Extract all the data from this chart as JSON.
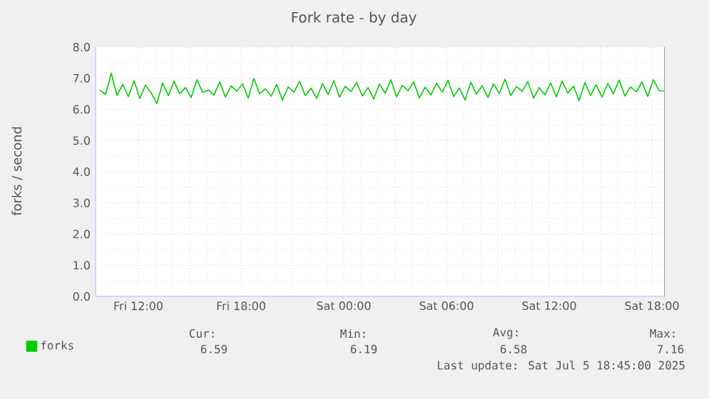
{
  "chart_data": {
    "type": "line",
    "title": "Fork rate - by day",
    "ylabel": "forks / second",
    "x": [
      "2025-07-04T09:45",
      "2025-07-04T10:05",
      "2025-07-04T10:25",
      "2025-07-04T10:45",
      "2025-07-04T11:05",
      "2025-07-04T11:25",
      "2025-07-04T11:45",
      "2025-07-04T12:05",
      "2025-07-04T12:25",
      "2025-07-04T12:45",
      "2025-07-04T13:05",
      "2025-07-04T13:25",
      "2025-07-04T13:45",
      "2025-07-04T14:05",
      "2025-07-04T14:25",
      "2025-07-04T14:45",
      "2025-07-04T15:05",
      "2025-07-04T15:25",
      "2025-07-04T15:45",
      "2025-07-04T16:05",
      "2025-07-04T16:25",
      "2025-07-04T16:45",
      "2025-07-04T17:05",
      "2025-07-04T17:25",
      "2025-07-04T17:45",
      "2025-07-04T18:05",
      "2025-07-04T18:25",
      "2025-07-04T18:45",
      "2025-07-04T19:05",
      "2025-07-04T19:25",
      "2025-07-04T19:45",
      "2025-07-04T20:05",
      "2025-07-04T20:25",
      "2025-07-04T20:45",
      "2025-07-04T21:05",
      "2025-07-04T21:25",
      "2025-07-04T21:45",
      "2025-07-04T22:05",
      "2025-07-04T22:25",
      "2025-07-04T22:45",
      "2025-07-04T23:05",
      "2025-07-04T23:25",
      "2025-07-04T23:45",
      "2025-07-05T00:05",
      "2025-07-05T00:25",
      "2025-07-05T00:45",
      "2025-07-05T01:05",
      "2025-07-05T01:25",
      "2025-07-05T01:45",
      "2025-07-05T02:05",
      "2025-07-05T02:25",
      "2025-07-05T02:45",
      "2025-07-05T03:05",
      "2025-07-05T03:25",
      "2025-07-05T03:45",
      "2025-07-05T04:05",
      "2025-07-05T04:25",
      "2025-07-05T04:45",
      "2025-07-05T05:05",
      "2025-07-05T05:25",
      "2025-07-05T05:45",
      "2025-07-05T06:05",
      "2025-07-05T06:25",
      "2025-07-05T06:45",
      "2025-07-05T07:05",
      "2025-07-05T07:25",
      "2025-07-05T07:45",
      "2025-07-05T08:05",
      "2025-07-05T08:25",
      "2025-07-05T08:45",
      "2025-07-05T09:05",
      "2025-07-05T09:25",
      "2025-07-05T09:45",
      "2025-07-05T10:05",
      "2025-07-05T10:25",
      "2025-07-05T10:45",
      "2025-07-05T11:05",
      "2025-07-05T11:25",
      "2025-07-05T11:45",
      "2025-07-05T12:05",
      "2025-07-05T12:25",
      "2025-07-05T12:45",
      "2025-07-05T13:05",
      "2025-07-05T13:25",
      "2025-07-05T13:45",
      "2025-07-05T14:05",
      "2025-07-05T14:25",
      "2025-07-05T14:45",
      "2025-07-05T15:05",
      "2025-07-05T15:25",
      "2025-07-05T15:45",
      "2025-07-05T16:05",
      "2025-07-05T16:25",
      "2025-07-05T16:45",
      "2025-07-05T17:05",
      "2025-07-05T17:25",
      "2025-07-05T17:45",
      "2025-07-05T18:05",
      "2025-07-05T18:25",
      "2025-07-05T18:45"
    ],
    "series": [
      {
        "name": "forks",
        "color": "#00cc00",
        "values": [
          6.62,
          6.48,
          7.16,
          6.45,
          6.8,
          6.41,
          6.92,
          6.35,
          6.78,
          6.52,
          6.19,
          6.85,
          6.44,
          6.9,
          6.5,
          6.7,
          6.38,
          6.95,
          6.55,
          6.62,
          6.46,
          6.88,
          6.4,
          6.75,
          6.58,
          6.82,
          6.36,
          6.99,
          6.5,
          6.66,
          6.42,
          6.8,
          6.3,
          6.72,
          6.55,
          6.9,
          6.44,
          6.68,
          6.35,
          6.83,
          6.48,
          6.92,
          6.39,
          6.74,
          6.57,
          6.86,
          6.43,
          6.7,
          6.33,
          6.81,
          6.52,
          6.95,
          6.4,
          6.77,
          6.6,
          6.88,
          6.37,
          6.71,
          6.46,
          6.84,
          6.55,
          6.93,
          6.41,
          6.69,
          6.3,
          6.87,
          6.49,
          6.76,
          6.38,
          6.82,
          6.51,
          6.97,
          6.44,
          6.73,
          6.58,
          6.89,
          6.36,
          6.7,
          6.47,
          6.85,
          6.4,
          6.91,
          6.52,
          6.74,
          6.28,
          6.86,
          6.45,
          6.79,
          6.39,
          6.83,
          6.5,
          6.94,
          6.43,
          6.72,
          6.56,
          6.88,
          6.42,
          6.95,
          6.6,
          6.59
        ]
      }
    ],
    "xlim": [
      "2025-07-04T09:30",
      "2025-07-05T18:45"
    ],
    "xticks": [
      {
        "value": "2025-07-04T12:00",
        "label": "Fri 12:00"
      },
      {
        "value": "2025-07-04T15:00",
        "label": null
      },
      {
        "value": "2025-07-04T18:00",
        "label": "Fri 18:00"
      },
      {
        "value": "2025-07-04T21:00",
        "label": null
      },
      {
        "value": "2025-07-05T00:00",
        "label": "Sat 00:00"
      },
      {
        "value": "2025-07-05T03:00",
        "label": null
      },
      {
        "value": "2025-07-05T06:00",
        "label": "Sat 06:00"
      },
      {
        "value": "2025-07-05T09:00",
        "label": null
      },
      {
        "value": "2025-07-05T12:00",
        "label": "Sat 12:00"
      },
      {
        "value": "2025-07-05T15:00",
        "label": null
      },
      {
        "value": "2025-07-05T18:00",
        "label": "Sat 18:00"
      }
    ],
    "ylim": [
      0,
      8
    ],
    "yticks": [
      {
        "value": 0,
        "label": "0.0"
      },
      {
        "value": 1,
        "label": "1.0"
      },
      {
        "value": 2,
        "label": "2.0"
      },
      {
        "value": 3,
        "label": "3.0"
      },
      {
        "value": 4,
        "label": "4.0"
      },
      {
        "value": 5,
        "label": "5.0"
      },
      {
        "value": 6,
        "label": "6.0"
      },
      {
        "value": 7,
        "label": "7.0"
      },
      {
        "value": 8,
        "label": "8.0"
      }
    ],
    "grid": true,
    "legend": "bottom left",
    "marker": "none",
    "line_style": "solid",
    "annotations": [
      "Cur:",
      "6.59",
      "Min:",
      "6.19",
      "Avg:",
      "6.58",
      "Max:",
      "7.16",
      "Last update: Sat Jul  5 18:45:00 2025"
    ]
  }
}
